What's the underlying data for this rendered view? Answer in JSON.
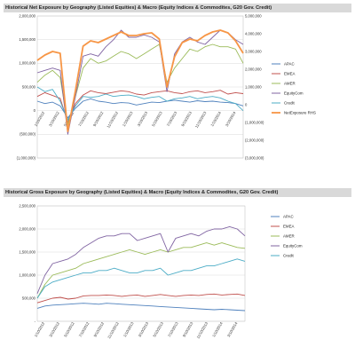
{
  "charts": [
    {
      "title": "Historical Net Exposure by Geography (Listed Equities) & Macro (Equity Indices & Commodites, G20 Gov. Credit)",
      "chart_data": {
        "type": "line",
        "title": "Historical Net Exposure by Geography (Listed Equities) & Macro (Equity Indices & Commodites, G20 Gov. Credit)",
        "x_ticks": [
          "1/10/2012",
          "3/10/2012",
          "5/10/2012",
          "7/10/2012",
          "9/10/2012",
          "11/10/2012",
          "1/10/2013",
          "3/10/2013",
          "5/10/2013",
          "7/10/2013",
          "9/10/2013",
          "11/10/2013",
          "1/10/2014",
          "3/10/2014"
        ],
        "y_left": {
          "ylim": [
            -1000000,
            2000000
          ],
          "ticks": [
            "2,000,000",
            "1,500,000",
            "1,000,000",
            "500,000",
            "0",
            "(500,000)",
            "(1,000,000)"
          ],
          "tick_values": [
            2000000,
            1500000,
            1000000,
            500000,
            0,
            -500000,
            -1000000
          ]
        },
        "y_right": {
          "ylim": [
            -3000000,
            5000000
          ],
          "ticks": [
            "5,000,000",
            "4,000,000",
            "3,000,000",
            "2,000,000",
            "1,000,000",
            "0",
            "(1,000,000)",
            "(2,000,000)",
            "(3,000,000)"
          ],
          "tick_values": [
            5000000,
            4000000,
            3000000,
            2000000,
            1000000,
            0,
            -1000000,
            -2000000,
            -3000000
          ]
        },
        "x_points": 28,
        "series": [
          {
            "name": "APAC",
            "color": "#4f81bd",
            "axis": "left",
            "values": [
              200000,
              150000,
              180000,
              100000,
              -150000,
              50000,
              200000,
              250000,
              200000,
              180000,
              150000,
              170000,
              160000,
              120000,
              150000,
              180000,
              170000,
              200000,
              220000,
              200000,
              180000,
              210000,
              190000,
              200000,
              180000,
              170000,
              150000,
              100000
            ]
          },
          {
            "name": "EMEA",
            "color": "#c0504d",
            "axis": "left",
            "values": [
              300000,
              380000,
              320000,
              260000,
              -250000,
              150000,
              330000,
              420000,
              380000,
              360000,
              390000,
              420000,
              400000,
              350000,
              330000,
              380000,
              400000,
              420000,
              380000,
              360000,
              400000,
              420000,
              380000,
              400000,
              430000,
              350000,
              380000,
              360000
            ]
          },
          {
            "name": "AMER",
            "color": "#9bbb59",
            "axis": "left",
            "values": [
              600000,
              750000,
              850000,
              700000,
              -300000,
              300000,
              900000,
              1100000,
              1000000,
              1050000,
              1150000,
              1250000,
              1200000,
              1100000,
              1200000,
              1300000,
              1400000,
              600000,
              900000,
              1100000,
              1300000,
              1250000,
              1350000,
              1400000,
              1350000,
              1350000,
              1300000,
              1000000
            ]
          },
          {
            "name": "EquityCom",
            "color": "#8064a2",
            "axis": "left",
            "values": [
              800000,
              850000,
              900000,
              850000,
              -500000,
              300000,
              1150000,
              1200000,
              1150000,
              1350000,
              1500000,
              1700000,
              1550000,
              1550000,
              1600000,
              1550000,
              1450000,
              400000,
              1200000,
              1450000,
              1550000,
              1450000,
              1400000,
              1550000,
              1700000,
              1650000,
              1500000,
              1400000
            ]
          },
          {
            "name": "Credit",
            "color": "#4bacc6",
            "axis": "left",
            "values": [
              500000,
              400000,
              450000,
              200000,
              -200000,
              100000,
              300000,
              280000,
              300000,
              350000,
              300000,
              320000,
              330000,
              300000,
              250000,
              280000,
              300000,
              200000,
              250000,
              270000,
              300000,
              250000,
              280000,
              300000,
              270000,
              200000,
              150000,
              0
            ]
          },
          {
            "name": "NetExposure RHS",
            "color": "#f79646",
            "axis": "right",
            "values": [
              2500000,
              2800000,
              3000000,
              2900000,
              -1500000,
              800000,
              3300000,
              3600000,
              3500000,
              3700000,
              3900000,
              4100000,
              3900000,
              3900000,
              4000000,
              4050000,
              3700000,
              1000000,
              2700000,
              3500000,
              3700000,
              3600000,
              3900000,
              4100000,
              4200000,
              4050000,
              3600000,
              2900000
            ]
          }
        ]
      }
    },
    {
      "title": "Historical Gross Exposure by Geography (Listed Equities) & Macro (Equity Indices & Commodites, G20 Gov. Credit)",
      "chart_data": {
        "type": "line",
        "title": "Historical Gross Exposure by Geography (Listed Equities) & Macro (Equity Indices & Commodites, G20 Gov. Credit)",
        "x_ticks": [
          "1/10/2012",
          "3/10/2012",
          "5/10/2012",
          "7/10/2012",
          "9/10/2012",
          "11/10/2012",
          "1/10/2013",
          "3/10/2013",
          "5/10/2013",
          "7/10/2013",
          "9/10/2013",
          "11/10/2013",
          "1/10/2014",
          "3/10/2014"
        ],
        "y_left": {
          "ylim": [
            0,
            2500000
          ],
          "ticks": [
            "2,500,000",
            "2,000,000",
            "1,500,000",
            "1,000,000",
            "500,000",
            "-"
          ],
          "tick_values": [
            2500000,
            2000000,
            1500000,
            1000000,
            500000,
            0
          ]
        },
        "x_points": 28,
        "series": [
          {
            "name": "APAC",
            "color": "#4f81bd",
            "axis": "left",
            "values": [
              280000,
              330000,
              350000,
              360000,
              370000,
              380000,
              390000,
              380000,
              370000,
              390000,
              380000,
              370000,
              360000,
              350000,
              340000,
              330000,
              320000,
              310000,
              300000,
              290000,
              280000,
              270000,
              260000,
              250000,
              260000,
              250000,
              240000,
              230000
            ]
          },
          {
            "name": "EMEA",
            "color": "#c0504d",
            "axis": "left",
            "values": [
              400000,
              450000,
              500000,
              520000,
              480000,
              500000,
              550000,
              560000,
              560000,
              570000,
              560000,
              540000,
              560000,
              570000,
              540000,
              560000,
              580000,
              560000,
              540000,
              560000,
              570000,
              560000,
              580000,
              590000,
              570000,
              580000,
              590000,
              560000
            ]
          },
          {
            "name": "AMER",
            "color": "#9bbb59",
            "axis": "left",
            "values": [
              500000,
              800000,
              1000000,
              1050000,
              1100000,
              1150000,
              1250000,
              1300000,
              1350000,
              1400000,
              1450000,
              1500000,
              1550000,
              1500000,
              1450000,
              1500000,
              1550000,
              1500000,
              1550000,
              1600000,
              1600000,
              1650000,
              1700000,
              1650000,
              1700000,
              1650000,
              1600000,
              1580000
            ]
          },
          {
            "name": "EquityCom",
            "color": "#8064a2",
            "axis": "left",
            "values": [
              600000,
              1000000,
              1250000,
              1300000,
              1350000,
              1450000,
              1600000,
              1700000,
              1800000,
              1850000,
              1850000,
              1900000,
              1900000,
              1750000,
              1800000,
              1850000,
              1900000,
              1500000,
              1800000,
              1850000,
              1900000,
              1850000,
              1950000,
              2000000,
              2000000,
              2050000,
              2000000,
              1850000
            ]
          },
          {
            "name": "Credit",
            "color": "#4bacc6",
            "axis": "left",
            "values": [
              500000,
              750000,
              850000,
              900000,
              950000,
              1000000,
              1050000,
              1050000,
              1100000,
              1100000,
              1150000,
              1100000,
              1050000,
              1050000,
              1100000,
              1100000,
              1150000,
              1000000,
              1050000,
              1100000,
              1100000,
              1150000,
              1200000,
              1200000,
              1250000,
              1300000,
              1350000,
              1300000
            ]
          }
        ]
      }
    }
  ]
}
